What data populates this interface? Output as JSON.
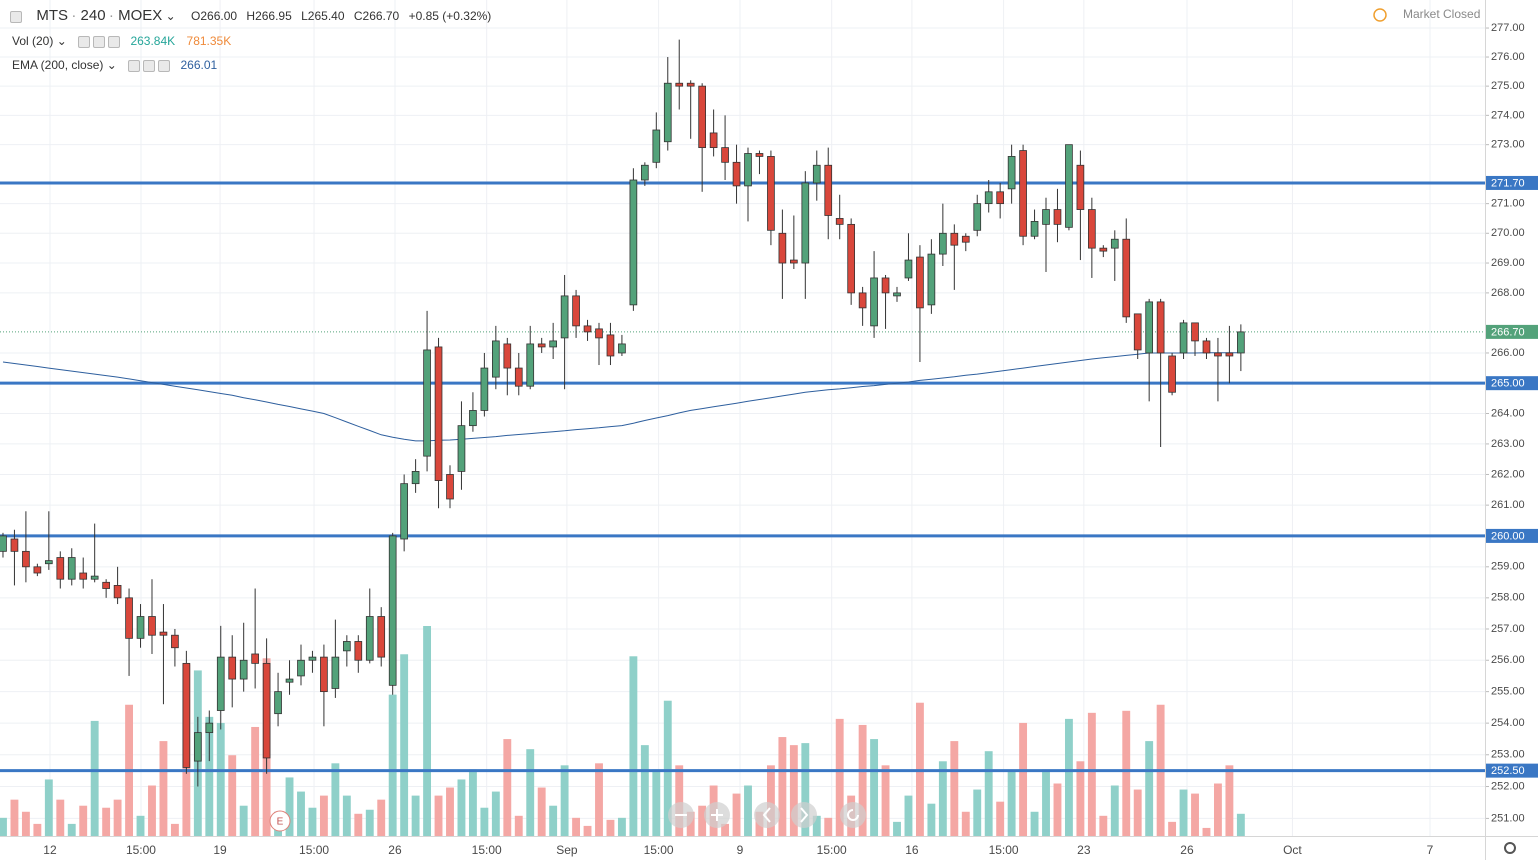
{
  "header": {
    "symbol": "MTS",
    "interval": "240",
    "exchange": "MOEX",
    "ohlc_labels": [
      "O266.00",
      "H266.95",
      "L265.40",
      "C266.70"
    ],
    "change": "+0.85 (+0.32%)",
    "status": "Market Closed",
    "earnings_marker": "E"
  },
  "indicators": [
    {
      "name": "Vol (20)",
      "value_labels": [
        "263.84K",
        "781.35K"
      ],
      "colors": [
        "#26a69a",
        "#ef8a3a"
      ]
    },
    {
      "name": "EMA (200, close)",
      "value_labels": [
        "266.01"
      ],
      "colors": [
        "#2e5f9e"
      ]
    }
  ],
  "chart_data": {
    "type": "candlestick",
    "log_scale": true,
    "grid": true,
    "up_color": "#53a27a",
    "down_color": "#d9473b",
    "volume_up_color": "#8fd0c9",
    "volume_down_color": "#f4a7a4",
    "xlim": [
      -0.26,
      129.3
    ],
    "xticks": [
      {
        "value": 4.1,
        "label": "12"
      },
      {
        "value": 12.04,
        "label": "15:00"
      },
      {
        "value": 18.94,
        "label": "19"
      },
      {
        "value": 27.14,
        "label": "15:00"
      },
      {
        "value": 34.2,
        "label": "26"
      },
      {
        "value": 42.2,
        "label": "15:00"
      },
      {
        "value": 49.2,
        "label": "Sep"
      },
      {
        "value": 57.2,
        "label": "15:00"
      },
      {
        "value": 64.3,
        "label": "9"
      },
      {
        "value": 72.3,
        "label": "15:00"
      },
      {
        "value": 79.3,
        "label": "16"
      },
      {
        "value": 87.3,
        "label": "15:00"
      },
      {
        "value": 94.3,
        "label": "23"
      },
      {
        "value": 103.3,
        "label": "26"
      },
      {
        "value": 112.5,
        "label": "Oct"
      },
      {
        "value": 124.5,
        "label": "7"
      }
    ],
    "ylim": [
      250.45,
      277.97
    ],
    "yticks": [
      {
        "value": 251,
        "label": "251.00"
      },
      {
        "value": 252,
        "label": "252.00"
      },
      {
        "value": 253,
        "label": "253.00"
      },
      {
        "value": 254,
        "label": "254.00"
      },
      {
        "value": 255,
        "label": "255.00"
      },
      {
        "value": 256,
        "label": "256.00"
      },
      {
        "value": 257,
        "label": "257.00"
      },
      {
        "value": 258,
        "label": "258.00"
      },
      {
        "value": 259,
        "label": "259.00"
      },
      {
        "value": 261,
        "label": "261.00"
      },
      {
        "value": 262,
        "label": "262.00"
      },
      {
        "value": 263,
        "label": "263.00"
      },
      {
        "value": 264,
        "label": "264.00"
      },
      {
        "value": 266,
        "label": "266.00"
      },
      {
        "value": 268,
        "label": "268.00"
      },
      {
        "value": 269,
        "label": "269.00"
      },
      {
        "value": 270,
        "label": "270.00"
      },
      {
        "value": 271,
        "label": "271.00"
      },
      {
        "value": 273,
        "label": "273.00"
      },
      {
        "value": 274,
        "label": "274.00"
      },
      {
        "value": 275,
        "label": "275.00"
      },
      {
        "value": 276,
        "label": "276.00"
      },
      {
        "value": 277,
        "label": "277.00"
      }
    ],
    "levels": [
      {
        "value": 271.7,
        "label": "271.70"
      },
      {
        "value": 265,
        "label": "265.00"
      },
      {
        "value": 260,
        "label": "260.00"
      },
      {
        "value": 252.5,
        "label": "252.50"
      }
    ],
    "level_color": "#3a77c4",
    "last_price": {
      "value": 266.7,
      "label": "266.70"
    },
    "open": [
      259.5,
      259.9,
      259.5,
      259.0,
      259.1,
      259.3,
      258.6,
      258.8,
      258.6,
      258.5,
      258.4,
      258.0,
      256.7,
      257.4,
      256.9,
      256.8,
      255.9,
      252.8,
      253.7,
      254.4,
      256.1,
      255.4,
      256.2,
      255.9,
      254.3,
      255.3,
      255.5,
      256.0,
      256.1,
      255.1,
      256.3,
      256.6,
      256.0,
      257.4,
      255.2,
      259.9,
      261.7,
      262.6,
      266.2,
      262.0,
      262.1,
      263.6,
      264.1,
      265.2,
      266.3,
      265.5,
      264.9,
      266.3,
      266.2,
      266.5,
      267.9,
      266.9,
      266.8,
      266.6,
      266.0,
      267.6,
      271.8,
      272.4,
      273.1,
      275.1,
      275.1,
      275.0,
      273.4,
      272.9,
      272.4,
      271.6,
      272.7,
      272.6,
      270.0,
      269.1,
      269.0,
      271.7,
      272.3,
      270.5,
      270.3,
      268.0,
      266.9,
      268.5,
      267.9,
      268.5,
      269.2,
      267.6,
      269.3,
      270.0,
      269.9,
      270.1,
      271.0,
      271.4,
      271.5,
      272.8,
      269.9,
      270.3,
      270.8,
      270.2,
      272.3,
      270.8,
      269.5,
      269.5,
      269.8,
      267.3,
      266.0,
      267.7,
      265.9,
      266.0,
      267.0,
      266.4,
      266.0,
      266.0,
      266.0
    ],
    "high": [
      260.1,
      260.2,
      260.8,
      259.1,
      260.8,
      259.5,
      259.6,
      259.3,
      260.4,
      258.6,
      259.0,
      258.3,
      257.8,
      258.6,
      257.8,
      257.0,
      256.3,
      254.2,
      254.4,
      257.1,
      256.8,
      257.2,
      258.3,
      256.7,
      255.6,
      256.0,
      256.5,
      256.3,
      256.5,
      257.3,
      256.8,
      256.8,
      258.3,
      257.7,
      260.1,
      262.0,
      262.5,
      267.4,
      266.5,
      262.3,
      264.4,
      264.7,
      266.0,
      266.9,
      266.5,
      266.0,
      266.9,
      266.5,
      267.0,
      268.6,
      268.1,
      267.1,
      267.0,
      267.0,
      266.6,
      272.2,
      272.4,
      274.1,
      276.0,
      276.6,
      275.2,
      275.1,
      274.2,
      274.0,
      273.0,
      272.9,
      272.8,
      272.8,
      270.8,
      270.6,
      272.1,
      272.8,
      272.9,
      271.3,
      270.5,
      268.2,
      269.4,
      268.6,
      268.2,
      270.0,
      269.6,
      269.8,
      271.0,
      270.3,
      270.0,
      271.3,
      271.8,
      271.7,
      273.0,
      273.0,
      270.8,
      271.2,
      271.5,
      273.0,
      272.8,
      271.2,
      269.6,
      270.1,
      270.5,
      267.3,
      267.8,
      267.8,
      266.0,
      267.1,
      267.0,
      266.5,
      266.5,
      266.9,
      266.95
    ],
    "low": [
      259.3,
      258.4,
      258.5,
      258.7,
      258.9,
      258.3,
      258.4,
      258.3,
      258.5,
      258.0,
      257.8,
      255.5,
      256.4,
      256.2,
      254.6,
      255.8,
      252.4,
      252.0,
      252.8,
      253.8,
      254.5,
      255.0,
      255.1,
      252.4,
      253.9,
      254.9,
      255.2,
      255.6,
      253.9,
      254.8,
      255.8,
      255.6,
      255.9,
      255.8,
      254.9,
      259.5,
      261.4,
      262.1,
      260.9,
      260.9,
      261.5,
      263.4,
      263.9,
      264.8,
      264.6,
      264.6,
      264.8,
      266.0,
      265.8,
      264.8,
      266.5,
      266.4,
      265.6,
      265.6,
      265.9,
      267.4,
      271.6,
      272.2,
      272.8,
      274.2,
      273.2,
      271.4,
      272.6,
      271.8,
      271.0,
      270.4,
      272.0,
      269.6,
      267.8,
      268.8,
      267.8,
      271.1,
      269.8,
      269.8,
      267.6,
      266.9,
      266.5,
      266.8,
      267.7,
      268.4,
      265.7,
      267.3,
      268.9,
      268.1,
      269.4,
      269.9,
      270.7,
      270.5,
      271.0,
      269.6,
      269.8,
      268.7,
      269.7,
      270.1,
      269.1,
      268.5,
      269.2,
      268.4,
      267.0,
      265.8,
      264.4,
      262.9,
      264.6,
      265.8,
      265.9,
      265.8,
      264.4,
      265.0,
      265.4
    ],
    "close": [
      260.0,
      259.5,
      259.0,
      258.8,
      259.2,
      258.6,
      259.3,
      258.6,
      258.7,
      258.3,
      258.0,
      256.7,
      257.4,
      256.8,
      256.8,
      256.4,
      252.6,
      253.7,
      254.0,
      256.1,
      255.4,
      256.0,
      255.9,
      252.9,
      255.0,
      255.4,
      256.0,
      256.1,
      255.0,
      256.1,
      256.6,
      256.0,
      257.4,
      256.1,
      260.0,
      261.7,
      262.1,
      266.1,
      261.8,
      261.2,
      263.6,
      264.1,
      265.5,
      266.4,
      265.5,
      264.9,
      266.3,
      266.2,
      266.4,
      267.9,
      266.9,
      266.7,
      266.5,
      265.9,
      266.3,
      271.8,
      272.3,
      273.5,
      275.1,
      275.0,
      275.0,
      272.9,
      272.9,
      272.4,
      271.6,
      272.7,
      272.6,
      270.1,
      269.0,
      269.0,
      271.7,
      272.3,
      270.6,
      270.3,
      268.0,
      267.5,
      268.5,
      268.0,
      268.0,
      269.1,
      267.5,
      269.3,
      270.0,
      269.6,
      269.7,
      271.0,
      271.4,
      271.0,
      272.6,
      269.9,
      270.4,
      270.8,
      270.3,
      273.0,
      270.8,
      269.5,
      269.4,
      269.8,
      267.2,
      266.1,
      267.7,
      266.0,
      264.7,
      267.0,
      266.4,
      266.0,
      265.9,
      265.9,
      266.7
    ],
    "volume": [
      216,
      432,
      288,
      144,
      672,
      432,
      144,
      360,
      1368,
      336,
      432,
      1560,
      240,
      600,
      1128,
      144,
      2040,
      1968,
      1416,
      1344,
      960,
      360,
      1296,
      2112,
      288,
      696,
      528,
      336,
      480,
      864,
      480,
      264,
      312,
      432,
      1680,
      2160,
      480,
      2496,
      480,
      576,
      672,
      792,
      336,
      528,
      1152,
      240,
      1032,
      576,
      360,
      840,
      216,
      120,
      864,
      192,
      216,
      2136,
      1080,
      792,
      1608,
      840,
      288,
      360,
      600,
      144,
      504,
      600,
      288,
      840,
      1176,
      1080,
      1104,
      240,
      216,
      1392,
      480,
      1320,
      1152,
      840,
      168,
      480,
      1584,
      384,
      888,
      1128,
      288,
      552,
      1008,
      408,
      768,
      1344,
      288,
      792,
      624,
      1392,
      888,
      1464,
      240,
      600,
      1488,
      552,
      1128,
      1560,
      168,
      552,
      504,
      96,
      624,
      840,
      263.84
    ],
    "ema": {
      "color": "#2e5f9e",
      "values": [
        265.7,
        265.65,
        265.6,
        265.55,
        265.5,
        265.45,
        265.4,
        265.35,
        265.3,
        265.25,
        265.2,
        265.14,
        265.08,
        265.02,
        264.96,
        264.9,
        264.84,
        264.78,
        264.72,
        264.66,
        264.6,
        264.52,
        264.45,
        264.38,
        264.3,
        264.23,
        264.15,
        264.08,
        264.0,
        263.86,
        263.72,
        263.58,
        263.44,
        263.3,
        263.22,
        263.15,
        263.1,
        263.1,
        263.12,
        263.13,
        263.15,
        263.18,
        263.21,
        263.24,
        263.28,
        263.31,
        263.34,
        263.37,
        263.4,
        263.43,
        263.47,
        263.5,
        263.53,
        263.57,
        263.6,
        263.68,
        263.77,
        263.85,
        263.93,
        264.02,
        264.1,
        264.16,
        264.22,
        264.28,
        264.34,
        264.4,
        264.46,
        264.52,
        264.58,
        264.64,
        264.7,
        264.74,
        264.78,
        264.81,
        264.85,
        264.89,
        264.92,
        264.96,
        265.0,
        265.04,
        265.09,
        265.13,
        265.17,
        265.21,
        265.26,
        265.3,
        265.35,
        265.4,
        265.45,
        265.5,
        265.55,
        265.6,
        265.65,
        265.7,
        265.75,
        265.8,
        265.84,
        265.88,
        265.92,
        265.96,
        266.0,
        266.0,
        266.0,
        266.0,
        266.0,
        266.01,
        266.01,
        266.01,
        266.01
      ]
    }
  }
}
